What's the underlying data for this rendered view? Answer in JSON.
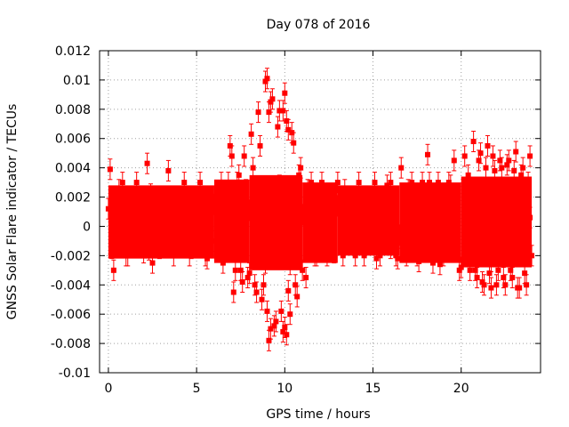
{
  "chart_data": {
    "type": "scatter",
    "title": "Day 078 of 2016",
    "xlabel": "GPS time / hours",
    "ylabel": "GNSS Solar Flare indicator / TECUs",
    "xlim": [
      -0.5,
      24.5
    ],
    "ylim": [
      -0.01,
      0.012
    ],
    "xticks": [
      0,
      5,
      10,
      15,
      20
    ],
    "xtick_labels": [
      "0",
      "5",
      "10",
      "15",
      "20"
    ],
    "yticks": [
      -0.01,
      -0.008,
      -0.006,
      -0.004,
      -0.002,
      0,
      0.002,
      0.004,
      0.006,
      0.008,
      0.01,
      0.012
    ],
    "ytick_labels": [
      "-0.01",
      "-0.008",
      "-0.006",
      "-0.004",
      "-0.002",
      "0",
      "0.002",
      "0.004",
      "0.006",
      "0.008",
      "0.01",
      "0.012"
    ],
    "grid": true,
    "series_color": "#ff0000",
    "series": [
      {
        "name": "solar flare indicator",
        "error": 0.0007,
        "x": [
          0.1,
          0.3,
          0.5,
          0.8,
          1.0,
          1.3,
          1.6,
          1.9,
          2.2,
          2.5,
          2.8,
          3.1,
          3.4,
          3.7,
          4.0,
          4.3,
          4.6,
          4.9,
          5.2,
          5.5,
          5.8,
          6.1,
          6.4,
          6.7,
          6.9,
          7.1,
          7.3,
          7.5,
          7.7,
          7.9,
          8.1,
          8.3,
          8.5,
          8.7,
          8.9,
          9.0,
          9.1,
          9.2,
          9.3,
          9.5,
          9.7,
          9.9,
          10.0,
          10.1,
          10.2,
          10.3,
          10.5,
          10.7,
          10.9,
          11.2,
          11.5,
          11.8,
          12.1,
          12.4,
          12.7,
          13.0,
          13.3,
          13.6,
          13.9,
          14.2,
          14.5,
          14.8,
          15.1,
          15.4,
          15.7,
          16.0,
          16.3,
          16.6,
          16.9,
          17.2,
          17.5,
          17.8,
          18.1,
          18.4,
          18.7,
          19.0,
          19.3,
          19.6,
          19.9,
          20.2,
          20.5,
          20.7,
          20.9,
          21.1,
          21.3,
          21.5,
          21.7,
          21.9,
          22.1,
          22.3,
          22.5,
          22.7,
          22.9,
          23.1,
          23.3,
          23.5,
          23.7,
          23.9,
          0.2,
          0.6,
          1.1,
          1.5,
          2.0,
          2.4,
          2.9,
          3.3,
          3.8,
          4.2,
          4.7,
          5.1,
          5.6,
          6.0,
          6.5,
          6.8,
          7.0,
          7.2,
          7.4,
          7.6,
          7.8,
          8.0,
          8.2,
          8.4,
          8.6,
          8.8,
          9.0,
          9.1,
          9.2,
          9.4,
          9.6,
          9.8,
          9.9,
          10.0,
          10.1,
          10.2,
          10.4,
          10.6,
          10.8,
          11.0,
          11.3,
          11.7,
          12.2,
          12.8,
          13.4,
          14.0,
          14.6,
          15.2,
          15.8,
          16.4,
          17.0,
          17.6,
          18.2,
          18.8,
          19.4,
          20.0,
          20.4,
          20.8,
          21.0,
          21.2,
          21.4,
          21.6,
          21.8,
          22.0,
          22.2,
          22.4,
          22.6,
          22.8,
          23.0,
          23.2,
          23.4,
          23.6,
          23.8,
          24.0,
          0.4,
          0.9,
          1.4,
          2.1,
          2.7,
          3.5,
          4.4,
          5.3,
          6.2,
          7.0,
          7.5,
          8.0,
          8.5,
          9.0,
          9.5,
          10.0,
          10.5,
          11.0,
          12.0,
          13.5,
          15.0,
          16.5,
          17.8,
          18.5,
          19.6,
          20.6,
          21.0,
          21.5,
          22.0,
          22.5,
          23.0,
          23.5,
          23.9,
          0.0,
          0.7,
          2.3,
          4.8,
          7.1,
          8.9,
          9.7,
          10.3,
          13.0,
          16.0,
          19.0,
          21.7,
          22.9,
          23.6
        ],
        "y": [
          0.0039,
          -0.003,
          0.002,
          0.003,
          -0.002,
          0.001,
          0.003,
          -0.001,
          0.0043,
          -0.0025,
          0.002,
          -0.001,
          0.0038,
          -0.002,
          0.002,
          0.003,
          -0.002,
          0.001,
          0.003,
          -0.002,
          0.002,
          -0.001,
          0.003,
          0.002,
          0.0055,
          -0.0045,
          0.003,
          -0.003,
          0.0048,
          -0.0035,
          0.0063,
          -0.004,
          0.0078,
          -0.005,
          0.0099,
          -0.0058,
          0.0078,
          -0.007,
          0.0087,
          -0.0065,
          0.0079,
          -0.0072,
          0.0091,
          -0.0074,
          0.0066,
          -0.006,
          0.0057,
          -0.0048,
          0.004,
          -0.0035,
          0.003,
          -0.002,
          0.003,
          -0.002,
          0.002,
          0.003,
          -0.002,
          0.002,
          -0.001,
          0.003,
          -0.002,
          0.002,
          0.003,
          -0.002,
          0.001,
          0.003,
          -0.002,
          0.004,
          -0.002,
          0.003,
          -0.002,
          0.003,
          0.0049,
          -0.0025,
          0.003,
          -0.002,
          0.003,
          0.0045,
          -0.003,
          0.0048,
          -0.003,
          0.0058,
          -0.0035,
          0.005,
          -0.004,
          0.0055,
          -0.0042,
          0.0038,
          -0.003,
          0.004,
          -0.004,
          0.0045,
          -0.0035,
          0.0051,
          -0.0042,
          0.004,
          -0.004,
          0.0048,
          -0.0015,
          0.0025,
          -0.002,
          0.0015,
          -0.0018,
          0.0022,
          -0.0015,
          0.002,
          -0.0012,
          0.0018,
          -0.0015,
          0.002,
          -0.0022,
          0.0015,
          -0.0025,
          0.003,
          0.0048,
          -0.003,
          0.0035,
          -0.0038,
          0.0025,
          -0.0032,
          0.004,
          -0.0045,
          0.0055,
          -0.004,
          0.0101,
          -0.0078,
          0.0085,
          -0.0068,
          0.0068,
          -0.0058,
          0.0079,
          -0.0069,
          0.0072,
          -0.0044,
          0.0064,
          -0.004,
          0.0035,
          -0.003,
          0.0025,
          -0.002,
          0.0022,
          -0.0018,
          0.0025,
          -0.002,
          0.002,
          -0.0022,
          0.0028,
          -0.0022,
          0.0025,
          -0.0024,
          0.003,
          -0.0026,
          0.0028,
          -0.0028,
          0.0035,
          -0.003,
          0.0045,
          -0.0038,
          0.004,
          -0.0032,
          0.0048,
          -0.004,
          0.0045,
          -0.0035,
          0.0042,
          -0.003,
          0.0038,
          -0.0042,
          0.0035,
          -0.0032,
          0.003,
          -0.002,
          0.0005,
          -0.0005,
          0.0008,
          -0.0006,
          0.0004,
          0.0007,
          -0.0004,
          0.0006,
          -0.0008,
          0.0009,
          -0.0012,
          0.0011,
          -0.0015,
          0.0014,
          -0.0018,
          0.0016,
          -0.0012,
          0.0008,
          0.0006,
          -0.0005,
          0.0007,
          -0.0006,
          0.0005,
          -0.0007,
          0.0008,
          -0.001,
          0.0012,
          -0.0011,
          0.0013,
          -0.0012,
          0.0011,
          -0.0009,
          0.0006,
          0.0012,
          0.0018,
          -0.0016,
          0.0015,
          0.0022,
          -0.0025,
          0.0028,
          -0.0026,
          0.0014,
          -0.0015,
          0.0016,
          -0.0024,
          0.0026,
          -0.0018
        ]
      }
    ],
    "band": {
      "segments": [
        {
          "x": [
            0,
            6
          ],
          "y_low": -0.0022,
          "y_high": 0.0028
        },
        {
          "x": [
            6,
            8
          ],
          "y_low": -0.0025,
          "y_high": 0.0032
        },
        {
          "x": [
            8,
            11
          ],
          "y_low": -0.003,
          "y_high": 0.0035
        },
        {
          "x": [
            11,
            13
          ],
          "y_low": -0.0025,
          "y_high": 0.003
        },
        {
          "x": [
            13,
            16.5
          ],
          "y_low": -0.002,
          "y_high": 0.0028
        },
        {
          "x": [
            16.5,
            20
          ],
          "y_low": -0.0025,
          "y_high": 0.003
        },
        {
          "x": [
            20,
            24
          ],
          "y_low": -0.0028,
          "y_high": 0.0034
        }
      ]
    }
  }
}
